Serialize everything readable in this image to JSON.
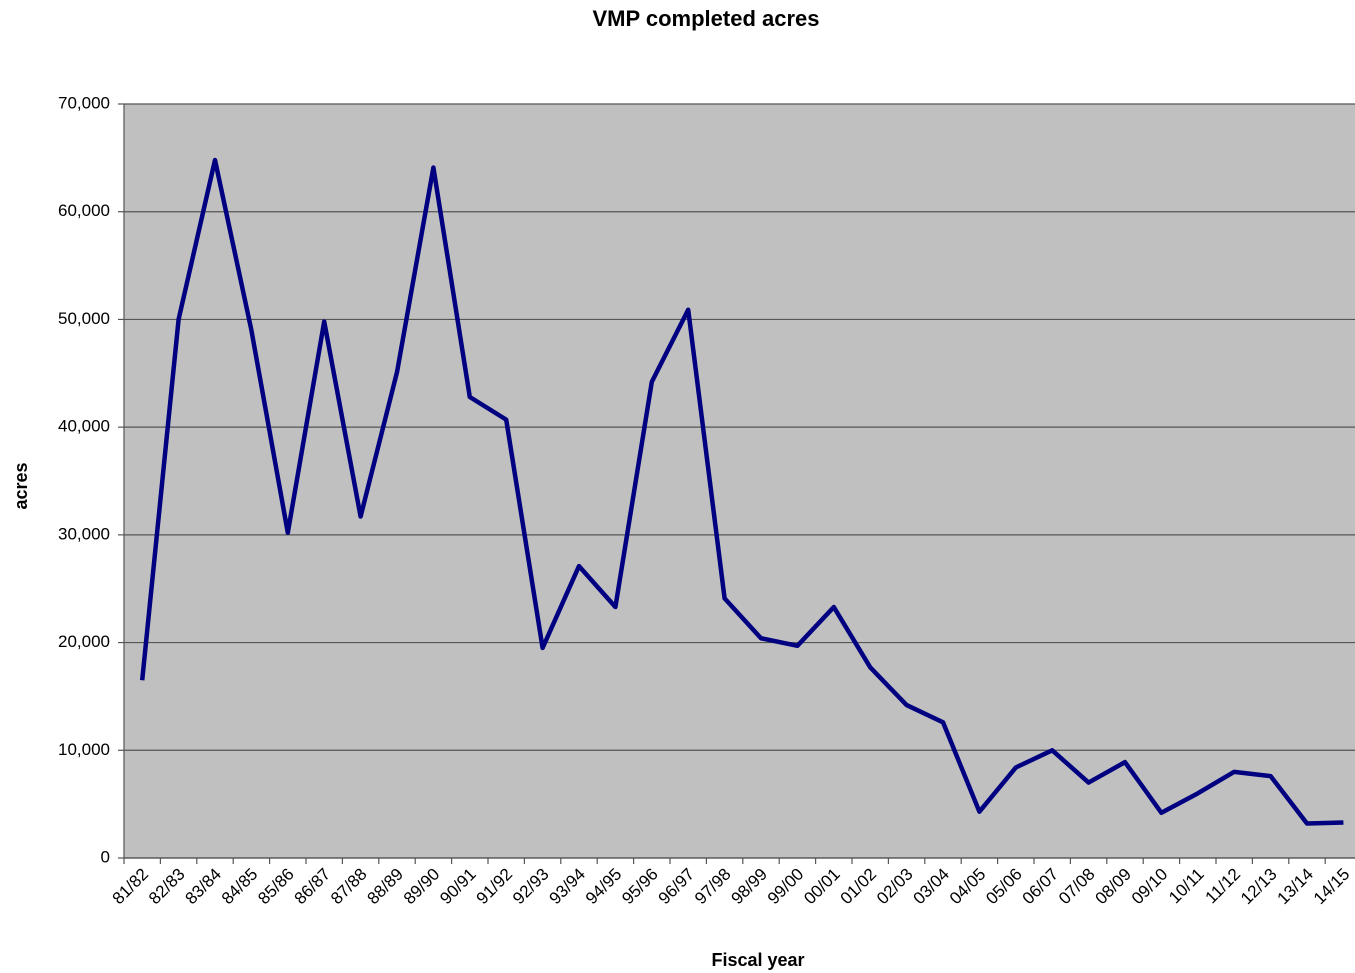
{
  "chart_data": {
    "type": "line",
    "title": "VMP completed acres",
    "x_label": "Fiscal year",
    "y_label": "acres",
    "categories": [
      "81/82",
      "82/83",
      "83/84",
      "84/85",
      "85/86",
      "86/87",
      "87/88",
      "88/89",
      "89/90",
      "90/91",
      "91/92",
      "92/93",
      "93/94",
      "94/95",
      "95/96",
      "96/97",
      "97/98",
      "98/99",
      "99/00",
      "00/01",
      "01/02",
      "02/03",
      "03/04",
      "04/05",
      "05/06",
      "06/07",
      "07/08",
      "08/09",
      "09/10",
      "10/11",
      "11/12",
      "12/13",
      "13/14",
      "14/15"
    ],
    "series": [
      {
        "name": "acres",
        "color": "#000080",
        "values": [
          16500,
          50000,
          64800,
          49000,
          30200,
          49800,
          31700,
          45100,
          64100,
          42800,
          40700,
          19500,
          27100,
          23300,
          44200,
          50900,
          24100,
          20400,
          19700,
          23300,
          17700,
          14200,
          12600,
          4300,
          8400,
          10000,
          7000,
          8900,
          4200,
          6000,
          8000,
          7600,
          3200,
          3300
        ]
      }
    ],
    "ylim": [
      0,
      70000
    ],
    "yticks": [
      0,
      {
        "value": 10000,
        "label": "10,000"
      },
      {
        "value": 20000,
        "label": "20,000"
      },
      {
        "value": 30000,
        "label": "30,000"
      },
      {
        "value": 40000,
        "label": "40,000"
      },
      {
        "value": 50000,
        "label": "50,000"
      },
      {
        "value": 60000,
        "label": "60,000"
      },
      {
        "value": 70000,
        "label": "70,000"
      }
    ],
    "grid": true
  }
}
